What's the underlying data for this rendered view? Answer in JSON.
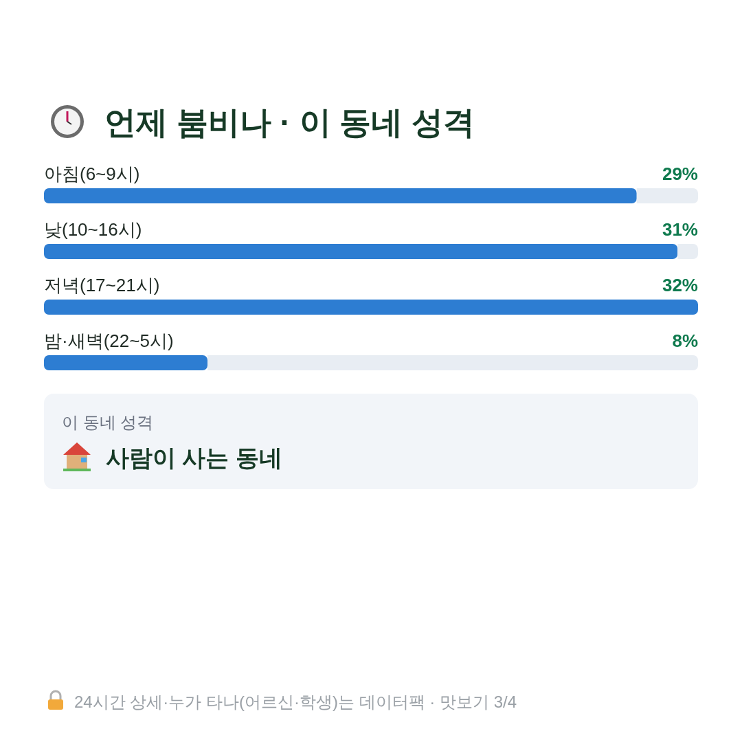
{
  "chart_data": {
    "type": "bar",
    "orientation": "horizontal",
    "title": "언제 붐비나 · 이 동네 성격",
    "categories": [
      "아침(6~9시)",
      "낮(10~16시)",
      "저녁(17~21시)",
      "밤·새벽(22~5시)"
    ],
    "values": [
      29,
      31,
      32,
      8
    ],
    "color": "#2d7dd2",
    "xlim": [
      0,
      32
    ],
    "value_labels": [
      "29%",
      "31%",
      "32%",
      "8%"
    ],
    "annotations": [
      "이 동네 성격",
      "사람이 사는 동네",
      "24시간 상세·누가 타나(어르신·학생)는 데이터팩 · 맛보기 3/4"
    ]
  }
}
